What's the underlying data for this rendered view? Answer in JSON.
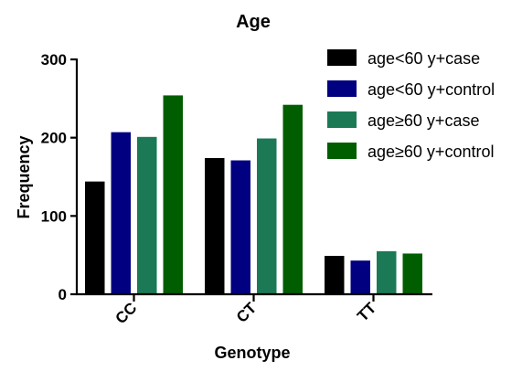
{
  "chart_data": {
    "type": "bar",
    "title": "Age",
    "xlabel": "Genotype",
    "ylabel": "Frequency",
    "ylim": [
      0,
      300
    ],
    "yticks": [
      0,
      100,
      200,
      300
    ],
    "categories": [
      "CC",
      "CT",
      "TT"
    ],
    "legend_position": "top-right",
    "series": [
      {
        "name": "age<60 y+case",
        "color": "#000000",
        "values": [
          144,
          174,
          49
        ]
      },
      {
        "name": "age<60 y+control",
        "color": "#000080",
        "values": [
          207,
          171,
          43
        ]
      },
      {
        "name": "age≥60 y+case",
        "color": "#1b7a55",
        "values": [
          201,
          199,
          55
        ]
      },
      {
        "name": "age≥60 y+control",
        "color": "#005e00",
        "values": [
          254,
          242,
          52
        ]
      }
    ]
  }
}
